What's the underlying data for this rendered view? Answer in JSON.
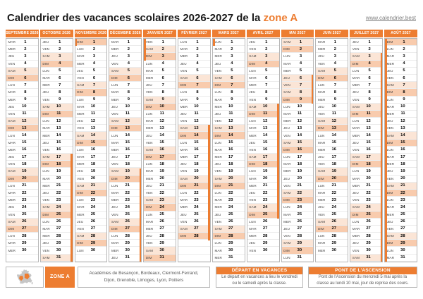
{
  "title": {
    "text": "Calendrier des vacances scolaires 2026-2027 de la ",
    "zone": "zone A"
  },
  "website": "www.calendrier.best",
  "colors": {
    "accent": "#ED7D31",
    "saturday_bg": "#FBE5D6",
    "sunday_bg": "#F8CBAD",
    "vacation_day_bg": "#FBE5D6",
    "box_border": "#B7B7B7",
    "body_text": "#595959"
  },
  "calendar": {
    "day_names": [
      "LUN",
      "MAR",
      "MER",
      "JEU",
      "VEN",
      "SAM",
      "DIM"
    ],
    "months": [
      {
        "name": "SEPTEMBRE 2026",
        "start_dow": "MAR",
        "num_days": 30
      },
      {
        "name": "OCTOBRE 2026",
        "start_dow": "JEU",
        "num_days": 31,
        "vacation_bar": {
          "from": 17,
          "to": 31,
          "side": "right"
        }
      },
      {
        "name": "NOVEMBRE 2026",
        "start_dow": "DIM",
        "num_days": 30,
        "vacation_bar": {
          "from": 1,
          "to": 1,
          "side": "left"
        }
      },
      {
        "name": "DÉCEMBRE 2026",
        "start_dow": "MAR",
        "num_days": 31,
        "vacation_bar": {
          "from": 19,
          "to": 31,
          "side": "right"
        }
      },
      {
        "name": "JANVIER 2027",
        "start_dow": "VEN",
        "num_days": 31,
        "vacation_bar": {
          "from": 1,
          "to": 3,
          "side": "left"
        }
      },
      {
        "name": "FÉVRIER 2027",
        "start_dow": "LUN",
        "num_days": 28,
        "vacation_bar": {
          "from": 13,
          "to": 28,
          "side": "right"
        }
      },
      {
        "name": "MARS 2027",
        "start_dow": "LUN",
        "num_days": 31,
        "vacation_bar": {
          "from": 1,
          "to": 1,
          "side": "left"
        }
      },
      {
        "name": "AVRIL 2027",
        "start_dow": "JEU",
        "num_days": 30,
        "vacation_bar": {
          "from": 10,
          "to": 25,
          "side": "right"
        }
      },
      {
        "name": "MAI 2027",
        "start_dow": "SAM",
        "num_days": 31,
        "vacation_bar": {
          "from": 6,
          "to": 9,
          "side": "right"
        },
        "highlight_days": [
          6,
          7
        ]
      },
      {
        "name": "JUIN 2027",
        "start_dow": "MAR",
        "num_days": 30
      },
      {
        "name": "JUILLET 2027",
        "start_dow": "JEU",
        "num_days": 31,
        "vacation_bar": {
          "from": 3,
          "to": 31,
          "side": "right"
        }
      },
      {
        "name": "AOÛT 2027",
        "start_dow": "DIM",
        "num_days": 31,
        "vacation_bar": {
          "from": 1,
          "to": 31,
          "side": "left"
        }
      }
    ]
  },
  "legend": {
    "zone_badge": "ZONE A",
    "academies": "Académies de Besançon, Bordeaux, Clermont-Ferrand, Dijon, Grenoble, Limoges, Lyon, Poitiers",
    "depart": {
      "title": "DÉPART EN VACANCES",
      "body": "Le départ en vacances a lieu le vendredi ou le samedi après la classe."
    },
    "pont": {
      "title": "PONT DE L'ASCENSION",
      "body": "Pont de l'Ascension du mercredi 5 mai après la classe au lundi 10 mai, jour de reprise des cours."
    }
  }
}
